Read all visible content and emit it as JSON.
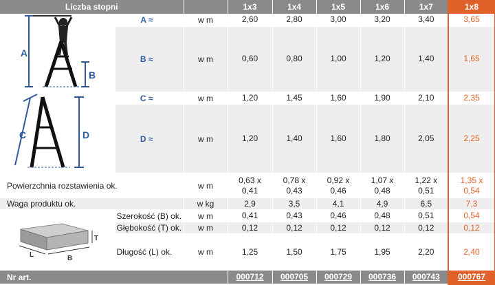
{
  "header": {
    "title": "Liczba stopni",
    "columns": [
      "1x3",
      "1x4",
      "1x5",
      "1x6",
      "1x7",
      "1x8"
    ]
  },
  "rows": {
    "A": {
      "label": "A ≈",
      "unit": "w m",
      "values": [
        "2,60",
        "2,80",
        "3,00",
        "3,20",
        "3,40",
        "3,65"
      ]
    },
    "B": {
      "label": "B ≈",
      "unit": "w m",
      "values": [
        "0,60",
        "0,80",
        "1,00",
        "1,20",
        "1,40",
        "1,65"
      ]
    },
    "C": {
      "label": "C ≈",
      "unit": "w m",
      "values": [
        "1,20",
        "1,45",
        "1,60",
        "1,90",
        "2,10",
        "2,35"
      ]
    },
    "D": {
      "label": "D ≈",
      "unit": "w m",
      "values": [
        "1,20",
        "1,40",
        "1,60",
        "1,80",
        "2,05",
        "2,25"
      ]
    },
    "area": {
      "label": "Powierzchnia rozstawienia ok.",
      "unit": "w m",
      "values": [
        [
          "0,63 x",
          "0,41"
        ],
        [
          "0,78 x",
          "0,43"
        ],
        [
          "0,92 x",
          "0,46"
        ],
        [
          "1,07 x",
          "0,48"
        ],
        [
          "1,22 x",
          "0,51"
        ],
        [
          "1,35 x",
          "0,54"
        ]
      ]
    },
    "weight": {
      "label": "Waga produktu ok.",
      "unit": "w kg",
      "values": [
        "2,9",
        "3,5",
        "4,1",
        "4,9",
        "6,5",
        "7,3"
      ]
    },
    "width": {
      "label": "Szerokość (B) ok.",
      "unit": "w m",
      "values": [
        "0,41",
        "0,43",
        "0,46",
        "0,48",
        "0,51",
        "0,54"
      ]
    },
    "depth": {
      "label": "Głębokość (T) ok.",
      "unit": "w m",
      "values": [
        "0,12",
        "0,12",
        "0,12",
        "0,12",
        "0,12",
        "0,12"
      ]
    },
    "length": {
      "label": "Długość (L) ok.",
      "unit": "w m",
      "values": [
        "1,25",
        "1,50",
        "1,75",
        "1,95",
        "2,20",
        "2,40"
      ]
    },
    "art": {
      "label": "Nr art.",
      "values": [
        "000712",
        "000705",
        "000729",
        "000736",
        "000743",
        "000767"
      ]
    }
  },
  "illustrations": {
    "ladder_letters": [
      "A",
      "B",
      "C",
      "D"
    ],
    "box_letters": [
      "T",
      "L",
      "B"
    ]
  },
  "colors": {
    "header_gray": "#8a8a8a",
    "row_gray": "#eeeeee",
    "highlight": "#e0622a",
    "label_blue": "#2d5b9e"
  }
}
